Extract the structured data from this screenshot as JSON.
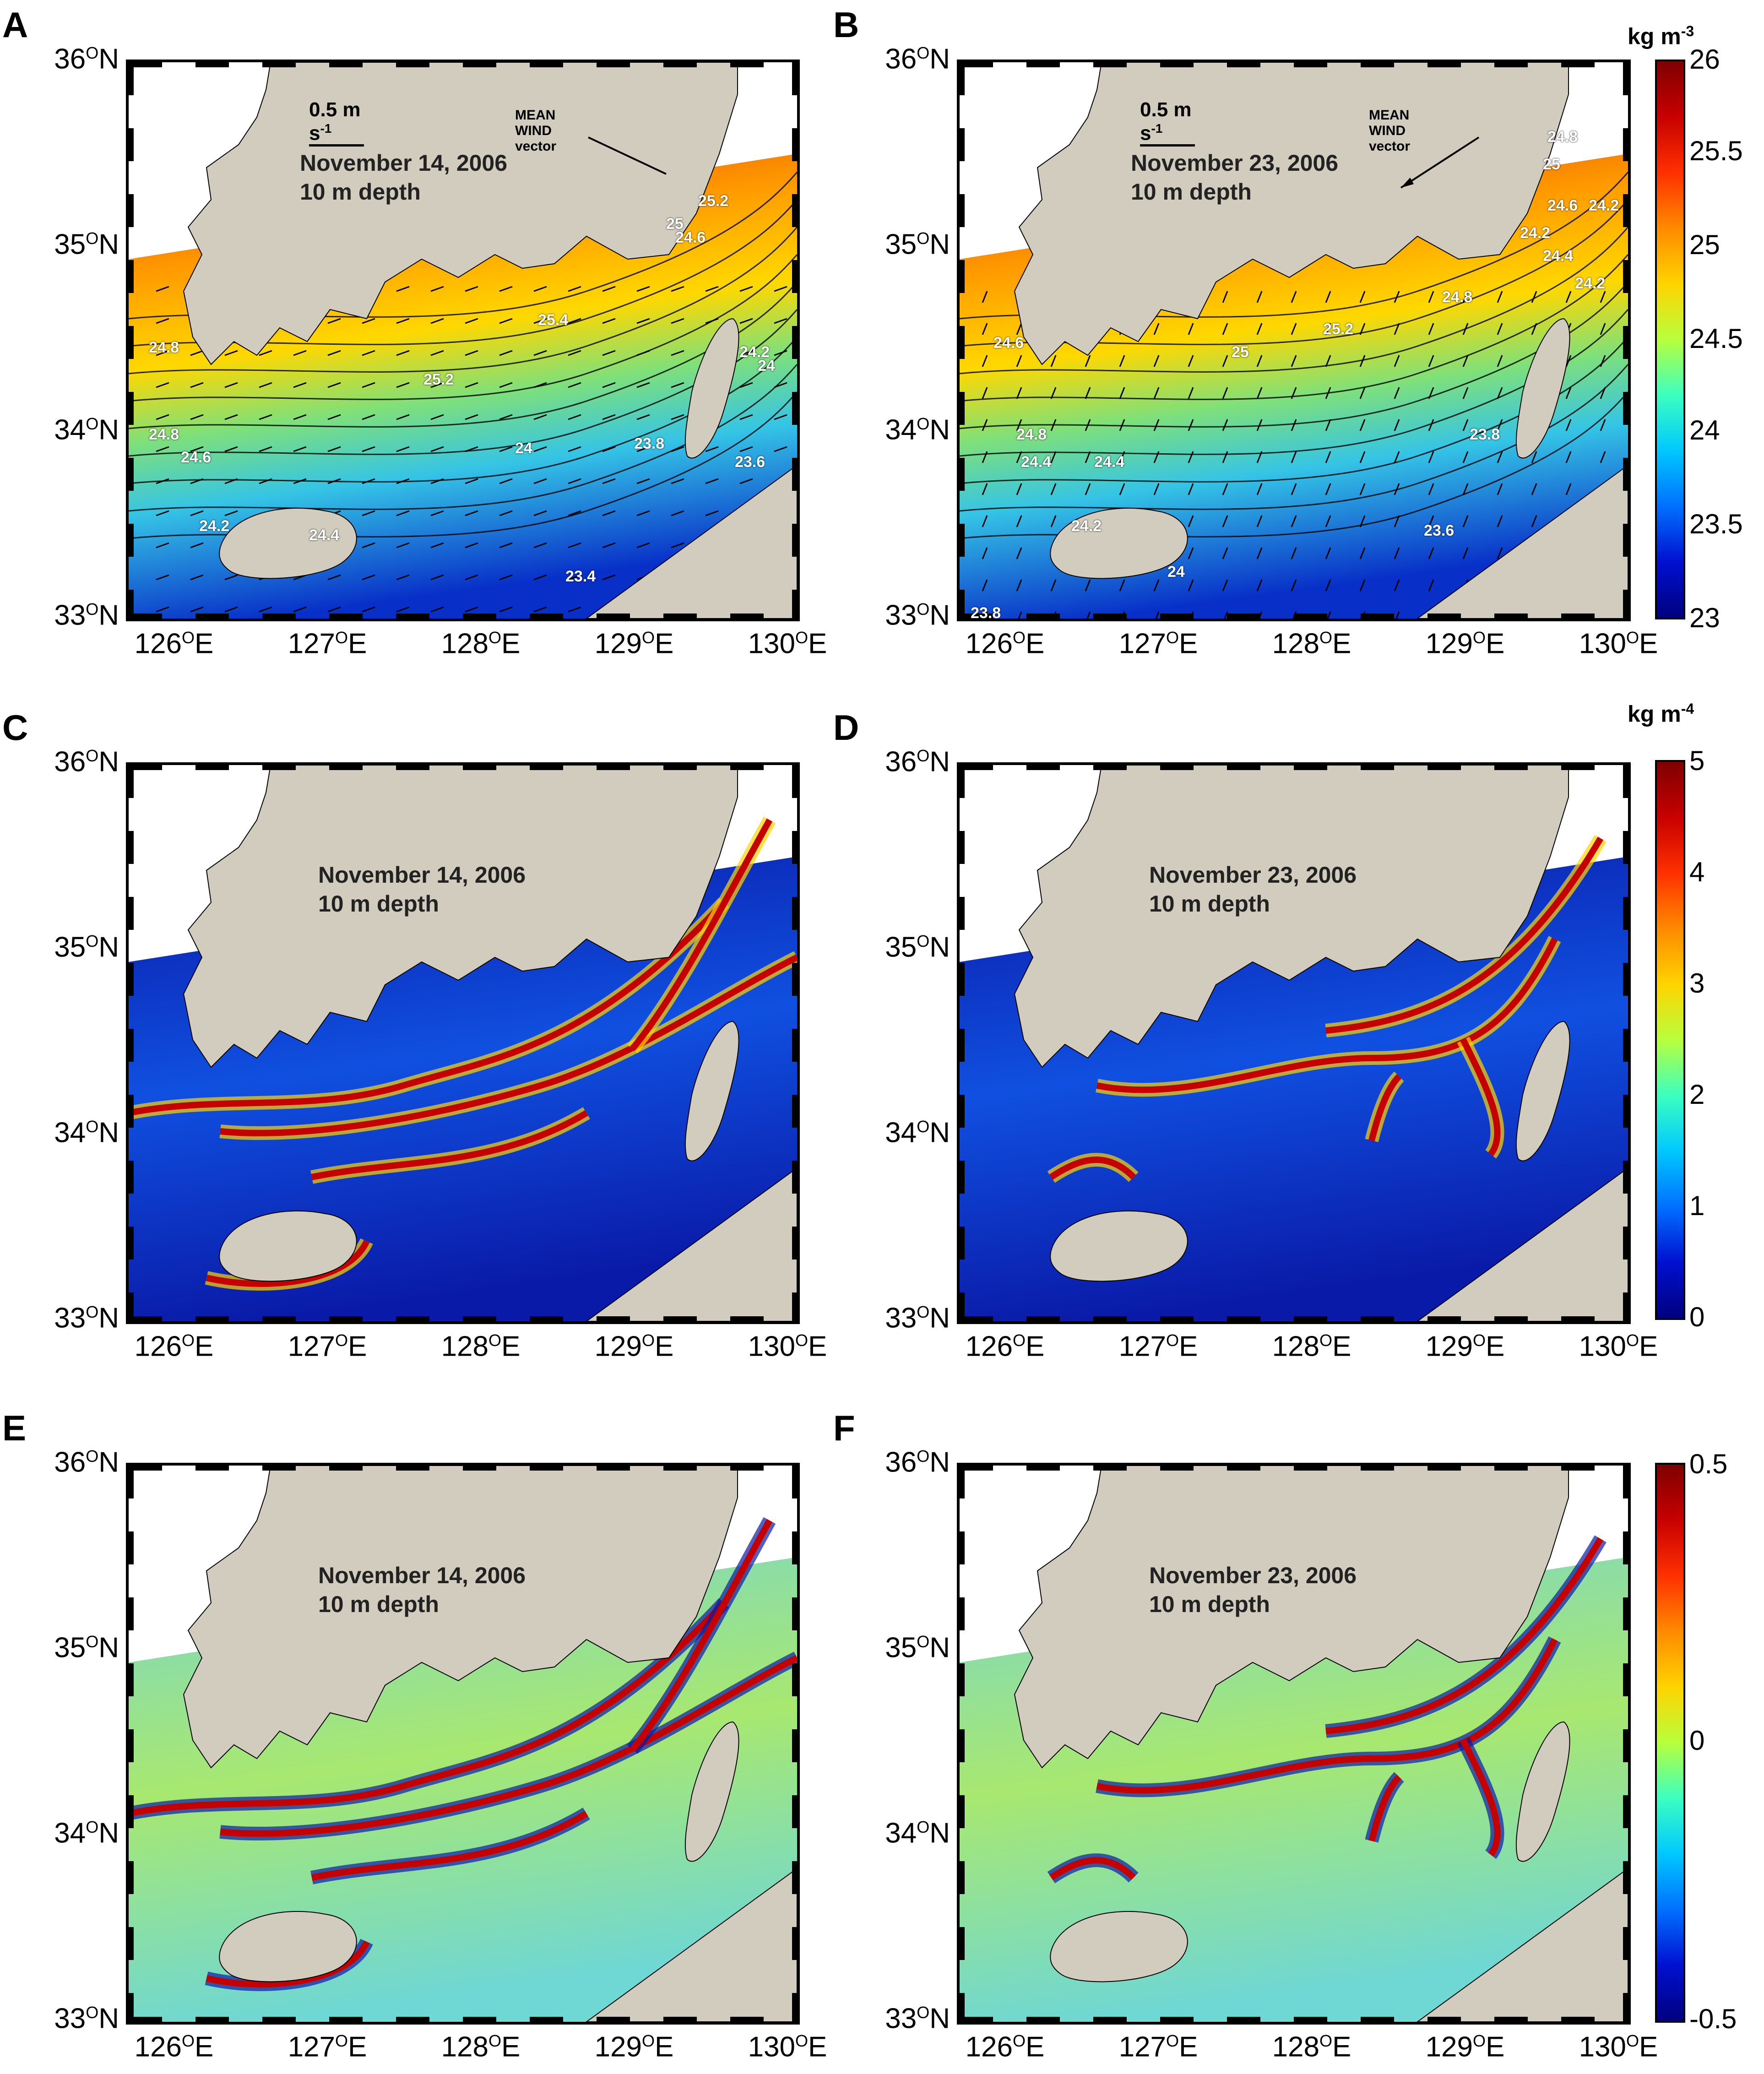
{
  "panels": [
    {
      "letter": "A",
      "date": "November 14, 2006",
      "depth": "10 m depth",
      "scale_label": "0.5 m s",
      "scale_sup": "-1",
      "wind_label": "MEAN WIND vector",
      "contour_labels": [
        "25.2",
        "25.4",
        "25.2",
        "24.8",
        "24.8",
        "24.6",
        "24.4",
        "24.2",
        "24",
        "23.8",
        "23.6",
        "23.4",
        "24.2",
        "24",
        "25",
        "24.6"
      ]
    },
    {
      "letter": "B",
      "date": "November 23, 2006",
      "depth": "10 m depth",
      "scale_label": "0.5 m s",
      "scale_sup": "-1",
      "wind_label": "MEAN WIND vector",
      "contour_labels": [
        "24.8",
        "25",
        "24.6",
        "24.2",
        "24.2",
        "24.4",
        "24.2",
        "25.2",
        "24.6",
        "25",
        "24.8",
        "24.4",
        "24.8",
        "23.8",
        "23.6",
        "24",
        "23.8",
        "24.2",
        "24.4"
      ]
    },
    {
      "letter": "C",
      "date": "November 14, 2006",
      "depth": "10 m depth"
    },
    {
      "letter": "D",
      "date": "November 23, 2006",
      "depth": "10 m depth"
    },
    {
      "letter": "E",
      "date": "November 14, 2006",
      "depth": "10 m depth"
    },
    {
      "letter": "F",
      "date": "November 23, 2006",
      "depth": "10 m depth"
    }
  ],
  "axes": {
    "lat_ticks": [
      {
        "deg": "36",
        "sup": "O",
        "hem": "N"
      },
      {
        "deg": "35",
        "sup": "O",
        "hem": "N"
      },
      {
        "deg": "34",
        "sup": "O",
        "hem": "N"
      },
      {
        "deg": "33",
        "sup": "O",
        "hem": "N"
      }
    ],
    "lon_ticks": [
      {
        "deg": "126",
        "sup": "O",
        "hem": "E"
      },
      {
        "deg": "127",
        "sup": "O",
        "hem": "E"
      },
      {
        "deg": "128",
        "sup": "O",
        "hem": "E"
      },
      {
        "deg": "129",
        "sup": "O",
        "hem": "E"
      },
      {
        "deg": "130",
        "sup": "O",
        "hem": "E"
      }
    ]
  },
  "colorbars": [
    {
      "unit": "kg m",
      "unit_sup": "-3",
      "ticks": [
        "26",
        "25.5",
        "25",
        "24.5",
        "24",
        "23.5",
        "23"
      ]
    },
    {
      "unit": "kg m",
      "unit_sup": "-4",
      "ticks": [
        "5",
        "4",
        "3",
        "2",
        "1",
        "0"
      ]
    },
    {
      "unit": "",
      "unit_sup": "",
      "ticks": [
        "0.5",
        "0",
        "-0.5"
      ]
    }
  ],
  "colors": {
    "land": "#d1ccbd",
    "ocean_low": "#0a1aa8",
    "ocean_high": "#b30000",
    "jet_mid": "#3fd0c8"
  }
}
